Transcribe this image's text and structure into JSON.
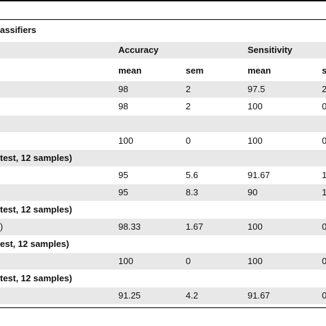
{
  "table": {
    "rows": [
      [
        "assifiers",
        null,
        null,
        null,
        null
      ],
      [
        null,
        "Accuracy",
        null,
        "Sensitivity",
        null
      ],
      [
        null,
        "mean",
        "sem",
        "mean",
        "s"
      ],
      [
        null,
        98,
        2,
        97.5,
        2
      ],
      [
        null,
        98,
        2,
        100,
        0
      ],
      [
        null,
        null,
        null,
        null,
        null
      ],
      [
        null,
        100,
        0,
        100,
        0
      ],
      [
        "test, 12 samples)",
        null,
        null,
        null,
        null
      ],
      [
        null,
        95,
        5.6,
        91.67,
        1
      ],
      [
        null,
        95,
        8.3,
        90,
        1
      ],
      [
        "test, 12 samples)",
        null,
        null,
        null,
        null
      ],
      [
        ")",
        98.33,
        1.67,
        100,
        0
      ],
      [
        "est, 12 samples)",
        null,
        null,
        null,
        null
      ],
      [
        null,
        100,
        0,
        100,
        0
      ],
      [
        "test, 12 samples)",
        null,
        null,
        null,
        null
      ],
      [
        null,
        91.25,
        4.2,
        91.67,
        0
      ]
    ]
  }
}
